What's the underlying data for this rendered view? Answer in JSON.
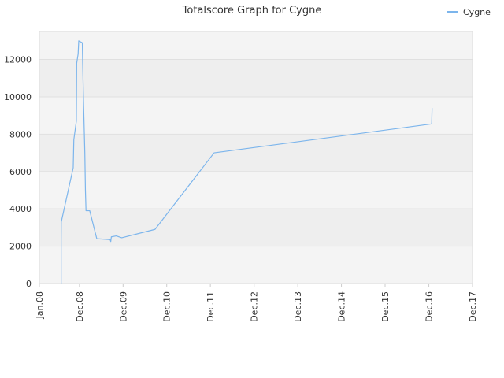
{
  "chart_data": {
    "type": "line",
    "title": "Totalscore Graph for Cygne",
    "xlabel": "",
    "ylabel": "",
    "x_tick_labels": [
      "Jan.08",
      "Dec.08",
      "Dec.09",
      "Dec.10",
      "Dec.11",
      "Dec.12",
      "Dec.13",
      "Dec.14",
      "Dec.15",
      "Dec.16",
      "Dec.17"
    ],
    "x_tick_dates": [
      "2008-01",
      "2008-12",
      "2009-12",
      "2010-12",
      "2011-12",
      "2012-12",
      "2013-12",
      "2014-12",
      "2015-12",
      "2016-12",
      "2017-12"
    ],
    "y_ticks": [
      0,
      2000,
      4000,
      6000,
      8000,
      10000,
      12000
    ],
    "ylim": [
      0,
      13500
    ],
    "xlim": [
      "2008-01",
      "2017-12"
    ],
    "grid": true,
    "legend_position": "top-right",
    "colors": {
      "series": "#7cb5ec",
      "band_a": "#eeeeee",
      "band_b": "#f4f4f4",
      "grid": "#e0e0e0"
    },
    "series": [
      {
        "name": "Cygne",
        "points": [
          [
            "2008-07-01",
            0
          ],
          [
            "2008-07-01",
            2300
          ],
          [
            "2008-07-02",
            3300
          ],
          [
            "2008-10-10",
            6200
          ],
          [
            "2008-10-15",
            7700
          ],
          [
            "2008-11-05",
            8700
          ],
          [
            "2008-11-08",
            11800
          ],
          [
            "2008-11-20",
            12300
          ],
          [
            "2008-11-25",
            13000
          ],
          [
            "2008-12-25",
            12900
          ],
          [
            "2008-12-28",
            11800
          ],
          [
            "2009-01-05",
            9500
          ],
          [
            "2009-01-15",
            7000
          ],
          [
            "2009-01-20",
            5000
          ],
          [
            "2009-01-25",
            3900
          ],
          [
            "2009-02-25",
            3900
          ],
          [
            "2009-04-25",
            2400
          ],
          [
            "2009-08-15",
            2350
          ],
          [
            "2009-08-20",
            2250
          ],
          [
            "2009-08-25",
            2500
          ],
          [
            "2009-10-05",
            2550
          ],
          [
            "2009-11-20",
            2450
          ],
          [
            "2010-08-25",
            2900
          ],
          [
            "2012-01-01",
            7000
          ],
          [
            "2016-12-25",
            8550
          ],
          [
            "2016-12-28",
            9400
          ]
        ]
      }
    ]
  }
}
